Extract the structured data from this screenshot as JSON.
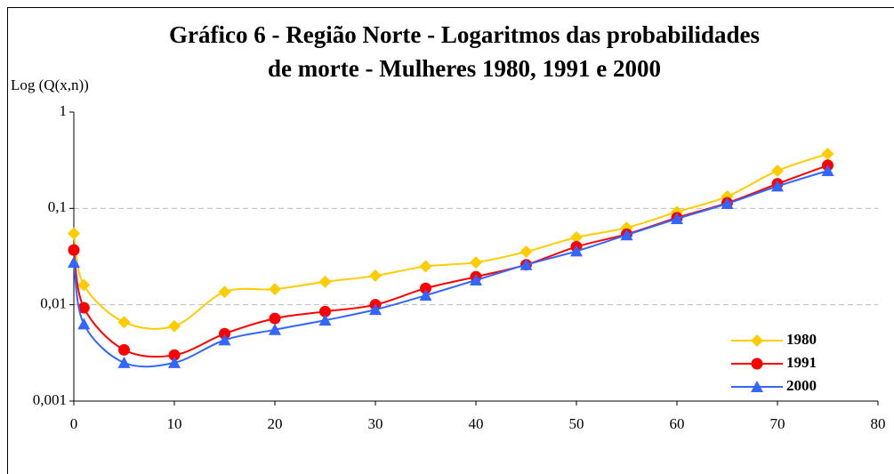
{
  "chart_data": {
    "type": "line",
    "title": [
      "Gráfico 6 - Região Norte - Logaritmos das probabilidades",
      "de morte - Mulheres 1980, 1991 e 2000"
    ],
    "y_label": "Log (Q(x,n))",
    "x": [
      0,
      1,
      5,
      10,
      15,
      20,
      25,
      30,
      35,
      40,
      45,
      50,
      55,
      60,
      65,
      70,
      75
    ],
    "series": [
      {
        "name": "1980",
        "color": "#ffcc00",
        "marker": "diamond",
        "values": [
          0.055,
          0.016,
          0.0066,
          0.006,
          0.0136,
          0.0145,
          0.0173,
          0.02,
          0.025,
          0.0275,
          0.0355,
          0.05,
          0.063,
          0.092,
          0.133,
          0.246,
          0.368
        ]
      },
      {
        "name": "1991",
        "color": "#ff0000",
        "marker": "circle",
        "values": [
          0.037,
          0.0093,
          0.0034,
          0.003,
          0.005,
          0.0072,
          0.0085,
          0.01,
          0.0148,
          0.0195,
          0.026,
          0.04,
          0.054,
          0.08,
          0.114,
          0.18,
          0.28
        ]
      },
      {
        "name": "2000",
        "color": "#3366ff",
        "marker": "triangle",
        "values": [
          0.0275,
          0.0063,
          0.0025,
          0.0025,
          0.0043,
          0.0055,
          0.0069,
          0.0089,
          0.0125,
          0.018,
          0.026,
          0.036,
          0.053,
          0.078,
          0.112,
          0.17,
          0.246
        ]
      }
    ],
    "xlim": [
      0,
      80
    ],
    "xticks": [
      0,
      10,
      20,
      30,
      40,
      50,
      60,
      70,
      80
    ],
    "ylim": [
      0.001,
      1
    ],
    "log_y": true,
    "yticks": [
      {
        "value": 0.001,
        "label": "0,001"
      },
      {
        "value": 0.01,
        "label": "0,01"
      },
      {
        "value": 0.1,
        "label": "0,1"
      },
      1
    ],
    "grid": true,
    "legend": "lower right"
  }
}
